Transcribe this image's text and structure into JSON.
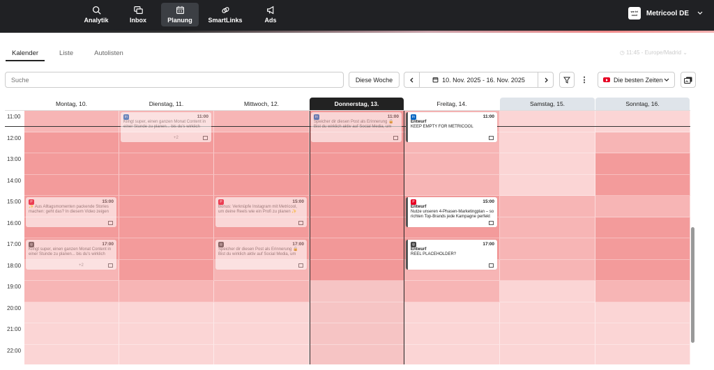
{
  "nav": [
    {
      "label": "Analytik",
      "icon": "analytics-icon",
      "active": false
    },
    {
      "label": "Inbox",
      "icon": "inbox-icon",
      "active": false
    },
    {
      "label": "Planung",
      "icon": "calendar-icon",
      "active": true
    },
    {
      "label": "SmartLinks",
      "icon": "link-icon",
      "active": false
    },
    {
      "label": "Ads",
      "icon": "megaphone-icon",
      "active": false
    }
  ],
  "brand": {
    "name": "Metricool DE",
    "logo_text": "we tri cool"
  },
  "tabs": [
    "Kalender",
    "Liste",
    "Autolisten"
  ],
  "timezone": "11:45 - Europe/Madrid",
  "toolbar": {
    "search_placeholder": "Suche",
    "this_week": "Diese Woche",
    "date_range": "10. Nov. 2025 - 16. Nov. 2025",
    "best_times": "Die besten Zeiten"
  },
  "days": [
    "Montag, 10.",
    "Dienstag, 11.",
    "Mittwoch, 12.",
    "Donnerstag, 13.",
    "Freitag, 14.",
    "Samstag, 15.",
    "Sonntag, 16."
  ],
  "hours": [
    "11:00",
    "12:00",
    "13:00",
    "14:00",
    "15:00",
    "16:00",
    "17:00",
    "18:00",
    "19:00",
    "20:00",
    "21:00",
    "22:00"
  ],
  "posts": [
    {
      "day": 1,
      "time": "11:00",
      "network": "linkedin",
      "text": "Klingt super, einen ganzen Monat Content in einer Stunde zu planen... bis du's wirklich",
      "extra": "+2"
    },
    {
      "day": 3,
      "time": "11:00",
      "network": "linkedin",
      "text": "Speicher dir diesen Post als Erinnerung 🔒 Bist du wirklich aktiv auf Social Media, um",
      "extra": ""
    },
    {
      "day": 4,
      "time": "11:00",
      "network": "linkedin",
      "status": "Entwurf",
      "text": "KEEP EMPTY FOR METRICOOL",
      "extra": ""
    },
    {
      "day": 0,
      "time": "15:00",
      "network": "pinterest",
      "text": "✨ Aus Alltagsmomenten packende Stories machen: geht das? In diesem Video zeigen",
      "extra": ""
    },
    {
      "day": 2,
      "time": "15:00",
      "network": "pinterest",
      "text": "Bonus: Verknüpfe Instagram mit Metricool, um deine Reels wie ein Profi zu planen ✨",
      "extra": ""
    },
    {
      "day": 4,
      "time": "15:00",
      "network": "pinterest",
      "status": "Entwurf",
      "text": "Nutze unseren 4-Phasen-Marketingplan – so richten Top-Brands jede Kampagne perfekt",
      "extra": ""
    },
    {
      "day": 0,
      "time": "17:00",
      "network": "instagram",
      "text": "Klingt super, einen ganzen Monat Content in einer Stunde zu planen... bis du's wirklich",
      "extra": "+2"
    },
    {
      "day": 2,
      "time": "17:00",
      "network": "instagram",
      "text": "Speicher dir diesen Post als Erinnerung 🔒 Bist du wirklich aktiv auf Social Media, um",
      "extra": ""
    },
    {
      "day": 4,
      "time": "17:00",
      "network": "instagram",
      "status": "Entwurf",
      "text": "REEL PLACEHOLDER?",
      "extra": ""
    }
  ],
  "colors": {
    "heat_strong": "#f39b9b",
    "heat_medium": "#f7b5b5",
    "heat_light": "#fbd5d5",
    "linkedin": "#0a66c2",
    "pinterest": "#e60023",
    "instagram": "#444444"
  }
}
